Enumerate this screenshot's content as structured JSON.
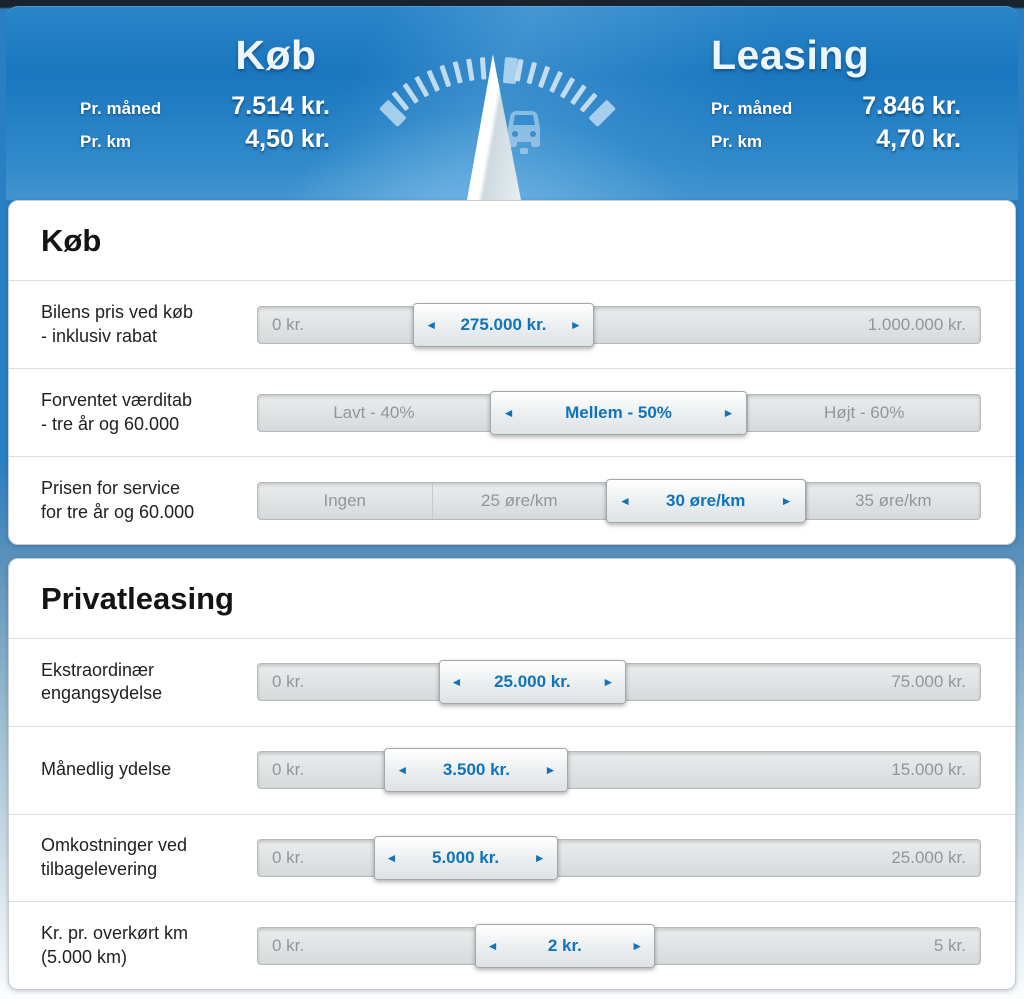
{
  "header": {
    "buy": {
      "title": "Køb",
      "stats": [
        {
          "label": "Pr. måned",
          "value": "7.514 kr."
        },
        {
          "label": "Pr. km",
          "value": "4,50 kr."
        }
      ]
    },
    "leasing": {
      "title": "Leasing",
      "stats": [
        {
          "label": "Pr. måned",
          "value": "7.846 kr."
        },
        {
          "label": "Pr. km",
          "value": "4,70 kr."
        }
      ]
    }
  },
  "icons": {
    "arrow_left": "◄",
    "arrow_right": "►"
  },
  "colors": {
    "accent_blue": "#1173ba",
    "header_blue": "#1a76be",
    "track_gray_text": "#8f979d"
  },
  "sections": [
    {
      "title": "Køb",
      "rows": [
        {
          "label1": "Bilens pris ved køb",
          "label2": "- inklusiv rabat",
          "type": "range",
          "min": "0 kr.",
          "value": "275.000 kr.",
          "max": "1.000.000 kr."
        },
        {
          "label1": "Forventet værditab",
          "label2": "- tre år og 60.000",
          "type": "options",
          "options": [
            "Lavt - 40%",
            "Mellem - 50%",
            "Højt - 60%"
          ],
          "selected": "Mellem - 50%"
        },
        {
          "label1": "Prisen for service",
          "label2": "for tre år og 60.000",
          "type": "options",
          "options": [
            "Ingen",
            "25 øre/km",
            "30 øre/km",
            "35 øre/km"
          ],
          "selected": "30 øre/km"
        }
      ]
    },
    {
      "title": "Privatleasing",
      "rows": [
        {
          "label1": "Ekstraordinær",
          "label2": "engangsydelse",
          "type": "range",
          "min": "0 kr.",
          "value": "25.000 kr.",
          "max": "75.000 kr."
        },
        {
          "label1": "Månedlig ydelse",
          "label2": "",
          "type": "range",
          "min": "0 kr.",
          "value": "3.500 kr.",
          "max": "15.000 kr."
        },
        {
          "label1": "Omkostninger ved",
          "label2": "tilbagelevering",
          "type": "range",
          "min": "0 kr.",
          "value": "5.000 kr.",
          "max": "25.000 kr."
        },
        {
          "label1": "Kr. pr. overkørt km",
          "label2": "(5.000 km)",
          "type": "range",
          "min": "0 kr.",
          "value": "2 kr.",
          "max": "5 kr."
        }
      ]
    }
  ]
}
